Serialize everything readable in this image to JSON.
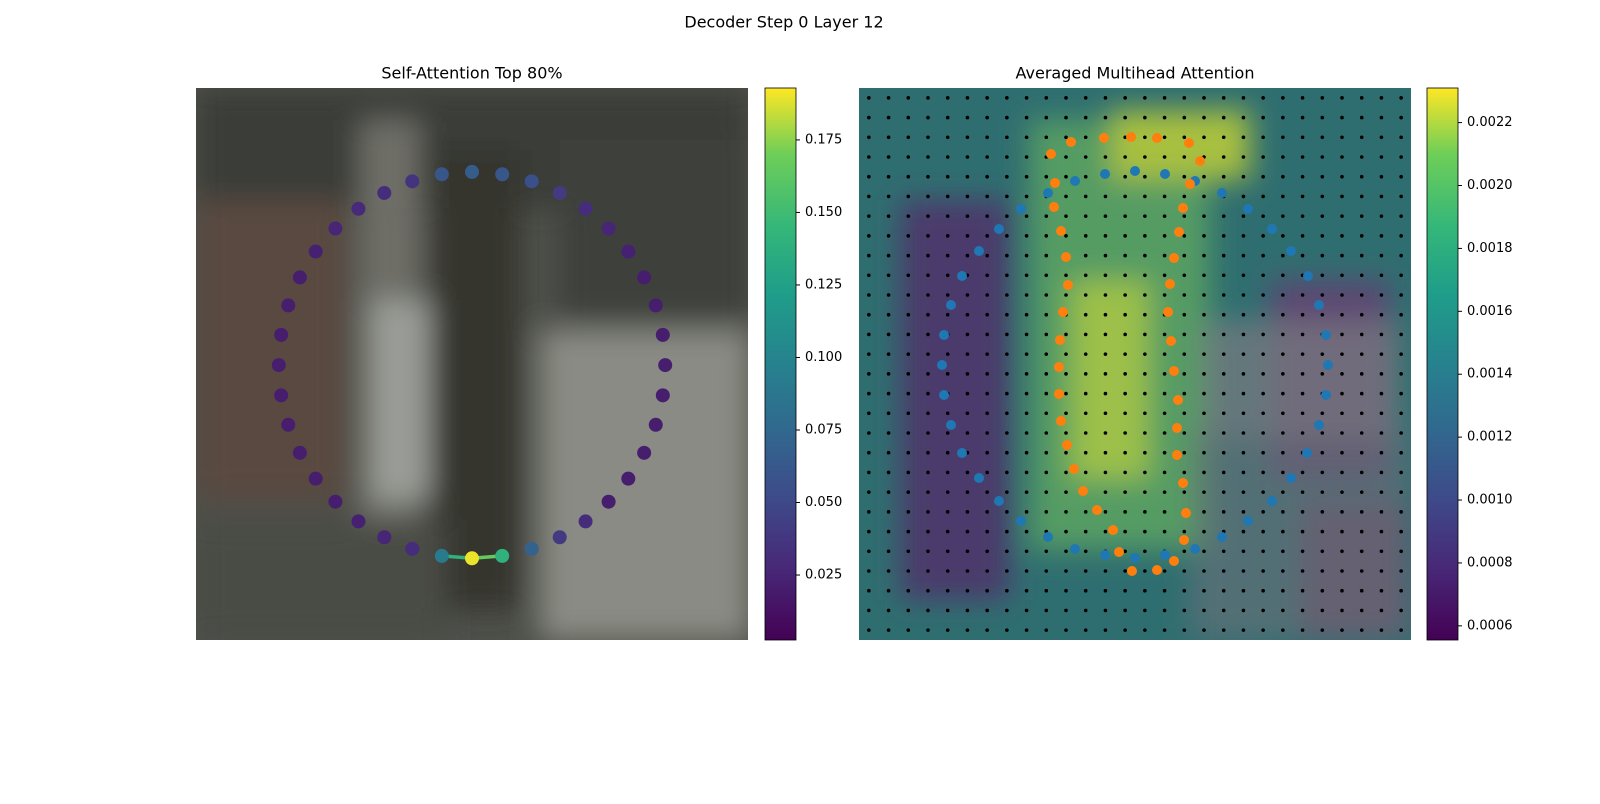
{
  "title": "Decoder Step 0 Layer 12",
  "chart_data": [
    {
      "type": "network",
      "title": "Self-Attention Top 80%",
      "colormap": "viridis",
      "values": [
        0.065,
        0.06,
        0.055,
        0.04,
        0.03,
        0.025,
        0.022,
        0.02,
        0.02,
        0.02,
        0.02,
        0.02,
        0.02,
        0.02,
        0.02,
        0.02,
        0.03,
        0.04,
        0.07,
        0.14,
        0.19,
        0.09,
        0.03,
        0.025,
        0.022,
        0.02,
        0.02,
        0.02,
        0.02,
        0.02,
        0.02,
        0.02,
        0.02,
        0.02,
        0.022,
        0.025,
        0.028,
        0.03,
        0.035,
        0.06
      ],
      "edges": [
        [
          21,
          20
        ],
        [
          20,
          19
        ]
      ],
      "clim": [
        0.0026,
        0.1929
      ],
      "cticks": [
        0.025,
        {
          "value": 0.05,
          "label": "0.050"
        },
        0.075,
        {
          "value": 0.1,
          "label": "0.100"
        },
        0.125,
        {
          "value": 0.15,
          "label": "0.150"
        },
        0.175
      ]
    },
    {
      "type": "scatter",
      "title": "Averaged Multihead Attention",
      "colormap": "viridis",
      "xlim": [
        0,
        552
      ],
      "ylim": [
        552,
        0
      ],
      "series": [
        {
          "color": "#1f77b4",
          "x": [
            216,
            246,
            276,
            306,
            336,
            363,
            389,
            413,
            432,
            449,
            460,
            467,
            469,
            467,
            460,
            448,
            432,
            413,
            389,
            363,
            336,
            306,
            276,
            246,
            216,
            189,
            162,
            140,
            120,
            103,
            92,
            85,
            83,
            85,
            92,
            103,
            120,
            140,
            162,
            189
          ],
          "y": [
            93,
            86,
            83,
            86,
            93,
            105,
            121,
            141,
            163,
            188,
            217,
            247,
            277,
            307,
            337,
            365,
            390,
            413,
            433,
            449,
            461,
            467,
            470,
            467,
            461,
            449,
            433,
            413,
            390,
            365,
            337,
            307,
            277,
            247,
            217,
            188,
            163,
            141,
            121,
            105
          ]
        },
        {
          "color": "#ff7f0e",
          "x": [
            192,
            212,
            245,
            272,
            298,
            330,
            341,
            331,
            324,
            320,
            315,
            311,
            309,
            312,
            315,
            319,
            318,
            318,
            324,
            327,
            325,
            315,
            298,
            273,
            260,
            254,
            238,
            224,
            215,
            208,
            202,
            200,
            200,
            201,
            204,
            209,
            207,
            202,
            195,
            196
          ],
          "y": [
            66,
            54,
            50,
            49,
            50,
            55,
            73,
            96,
            120,
            144,
            170,
            196,
            224,
            253,
            283,
            312,
            340,
            367,
            395,
            425,
            452,
            473,
            482,
            483,
            464,
            442,
            422,
            403,
            381,
            357,
            333,
            306,
            279,
            252,
            224,
            197,
            169,
            143,
            119,
            95
          ]
        }
      ],
      "clim": [
        0.000555,
        0.00231
      ],
      "cticks": [
        0.0006,
        0.0008,
        {
          "value": 0.001,
          "label": "0.0010"
        },
        0.0012,
        0.0014,
        0.0016,
        0.0018,
        {
          "value": 0.002,
          "label": "0.0020"
        },
        0.0022
      ]
    }
  ]
}
